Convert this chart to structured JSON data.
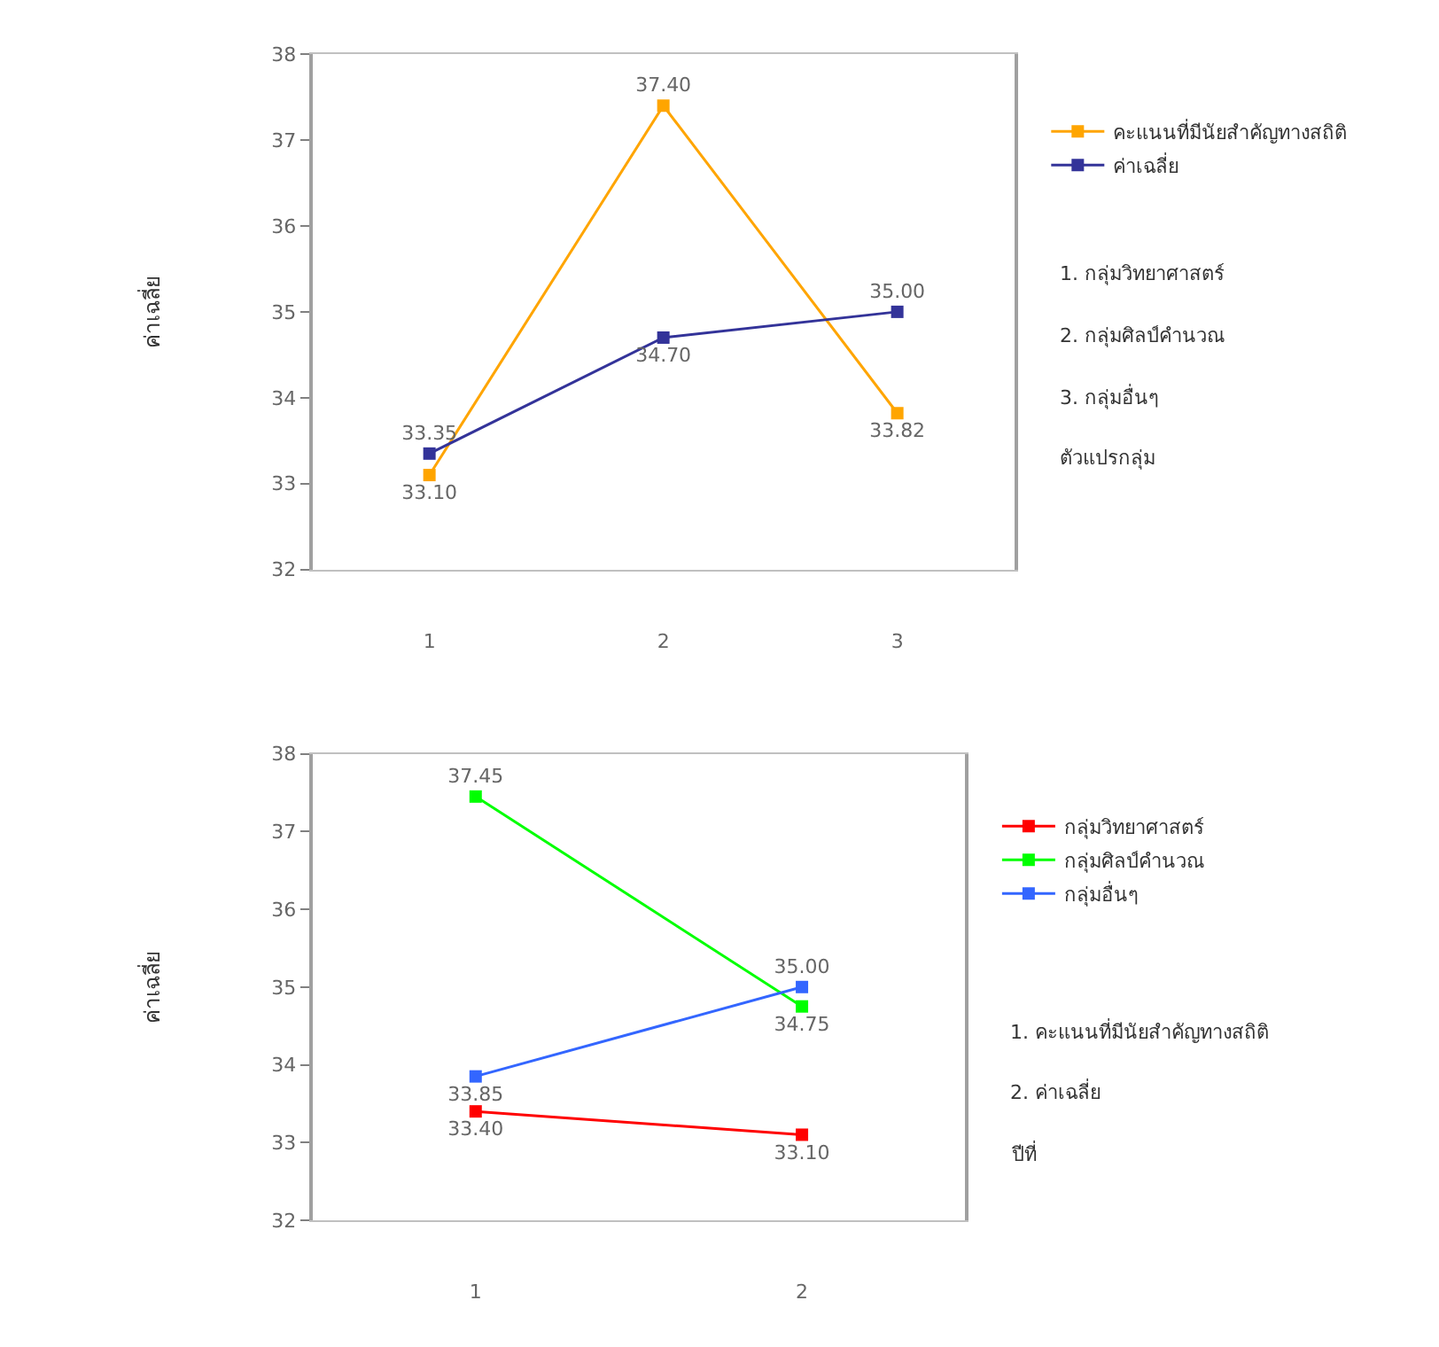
{
  "chart_data": [
    {
      "type": "line",
      "ylabel": "ค่าเฉลี่ย",
      "categories": [
        "1",
        "2",
        "3"
      ],
      "ylim": [
        32,
        38
      ],
      "yticks": [
        32,
        33,
        34,
        35,
        36,
        37,
        38
      ],
      "marker": "square",
      "legend": "right",
      "series": [
        {
          "name": "คะแนนที่มีนัยสำคัญทางสถิติ",
          "color": "#ffa500",
          "values": [
            33.1,
            37.4,
            33.82
          ],
          "value_labels": [
            "33.10",
            "37.40",
            "33.82"
          ]
        },
        {
          "name": "ค่าเฉลี่ย",
          "color": "#333399",
          "values": [
            33.35,
            34.7,
            35.0
          ],
          "value_labels": [
            "33.35",
            "34.70",
            "35.00"
          ]
        }
      ],
      "annotations": [
        "1. กลุ่มวิทยาศาสตร์",
        "2. กลุ่มศิลป์คำนวณ",
        "3. กลุ่มอื่นๆ",
        "ตัวแปรกลุ่ม"
      ]
    },
    {
      "type": "line",
      "ylabel": "ค่าเฉลี่ย",
      "categories": [
        "1",
        "2"
      ],
      "ylim": [
        32,
        38
      ],
      "yticks": [
        32,
        33,
        34,
        35,
        36,
        37,
        38
      ],
      "marker": "square",
      "legend": "right",
      "series": [
        {
          "name": "กลุ่มวิทยาศาสตร์",
          "color": "#ff0000",
          "values": [
            33.4,
            33.1
          ],
          "value_labels": [
            "33.40",
            "33.10"
          ]
        },
        {
          "name": "กลุ่มศิลป์คำนวณ",
          "color": "#00ff00",
          "values": [
            37.45,
            34.75
          ],
          "value_labels": [
            "37.45",
            "34.75"
          ]
        },
        {
          "name": "กลุ่มอื่นๆ",
          "color": "#3366ff",
          "values": [
            33.85,
            35.0
          ],
          "value_labels": [
            "33.85",
            "35.00"
          ]
        }
      ],
      "annotations": [
        "1. คะแนนที่มีนัยสำคัญทางสถิติ",
        "2. ค่าเฉลี่ย",
        "ปีที่"
      ]
    }
  ]
}
